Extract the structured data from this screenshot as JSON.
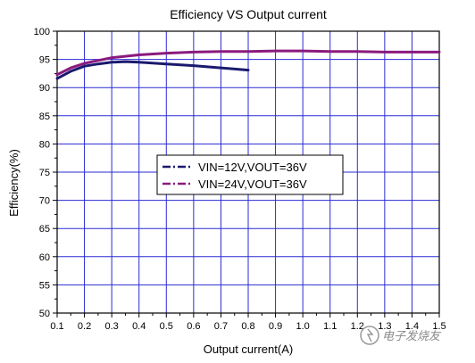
{
  "chart_data": {
    "type": "line",
    "title": "Efficiency VS Output current",
    "xlabel": "Output current(A)",
    "ylabel": "Efficiency(%)",
    "xlim": [
      0.1,
      1.5
    ],
    "ylim": [
      50,
      100
    ],
    "xticks": [
      0.1,
      0.2,
      0.3,
      0.4,
      0.5,
      0.6,
      0.7,
      0.8,
      0.9,
      1.0,
      1.1,
      1.2,
      1.3,
      1.4,
      1.5
    ],
    "xtick_labels": [
      "0.1",
      "0.2",
      "0.3",
      "0.4",
      "0.5",
      "0.6",
      "0.7",
      "0.8",
      "0.9",
      "1.0",
      "1.1",
      "1.2",
      "1.3",
      "1.4",
      "1.5"
    ],
    "yticks": [
      50,
      55,
      60,
      65,
      70,
      75,
      80,
      85,
      90,
      95,
      100
    ],
    "ytick_labels": [
      "50",
      "55",
      "60",
      "65",
      "70",
      "75",
      "80",
      "85",
      "90",
      "95",
      "100"
    ],
    "grid": true,
    "legend_position": "center",
    "series": [
      {
        "name": "VIN=12V,VOUT=36V",
        "color": "#1a1a6e",
        "dash": "dash-dot",
        "x": [
          0.1,
          0.15,
          0.2,
          0.25,
          0.3,
          0.35,
          0.4,
          0.5,
          0.6,
          0.7,
          0.8
        ],
        "y": [
          91.6,
          92.9,
          93.8,
          94.2,
          94.5,
          94.6,
          94.5,
          94.2,
          93.9,
          93.5,
          93.1
        ]
      },
      {
        "name": "VIN=24V,VOUT=36V",
        "color": "#8b1a7e",
        "dash": "dash-dot",
        "x": [
          0.1,
          0.15,
          0.2,
          0.3,
          0.4,
          0.5,
          0.6,
          0.7,
          0.8,
          0.9,
          1.0,
          1.1,
          1.2,
          1.3,
          1.4,
          1.5
        ],
        "y": [
          92.3,
          93.5,
          94.3,
          95.3,
          95.8,
          96.1,
          96.3,
          96.4,
          96.4,
          96.5,
          96.5,
          96.4,
          96.4,
          96.3,
          96.3,
          96.3
        ]
      }
    ]
  },
  "watermark": {
    "text": "电子发烧友"
  }
}
